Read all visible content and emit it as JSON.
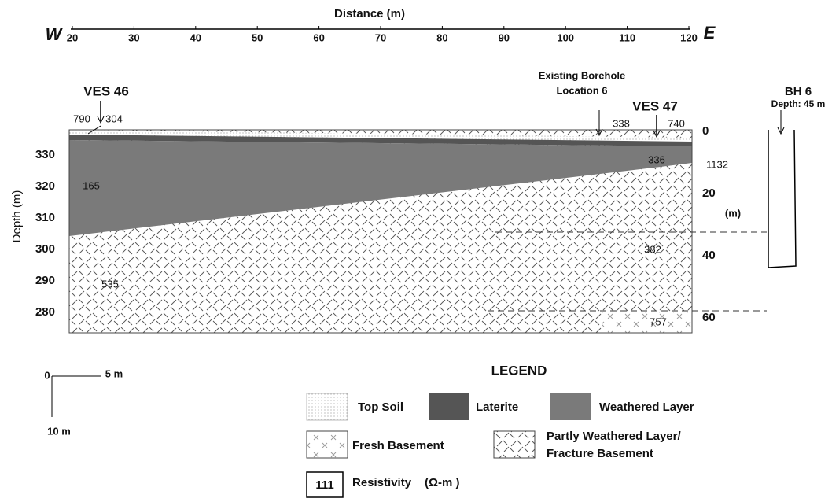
{
  "distance_axis": {
    "title": "Distance (m)",
    "west": "W",
    "east": "E",
    "ticks": [
      20,
      30,
      40,
      50,
      60,
      70,
      80,
      90,
      100,
      110,
      120
    ]
  },
  "elevation_axis": {
    "title": "Depth (m)",
    "ticks": [
      330,
      320,
      310,
      300,
      290,
      280
    ]
  },
  "depth_scale": {
    "unit": "(m)",
    "ticks": [
      0,
      20,
      40,
      60
    ]
  },
  "ves46": {
    "label": "VES 46",
    "resistivities": [
      790,
      304,
      165,
      535
    ]
  },
  "borehole_location": {
    "line1": "Existing Borehole",
    "line2": "Location 6"
  },
  "ves47": {
    "label": "VES 47",
    "resistivities": [
      338,
      740,
      336,
      1132,
      382,
      757
    ]
  },
  "bh6": {
    "label": "BH 6",
    "depth": "Depth: 45 m"
  },
  "scale_bar": {
    "origin": "0",
    "horizontal": "5 m",
    "vertical": "10 m"
  },
  "legend": {
    "title": "LEGEND",
    "top_soil": "Top Soil",
    "laterite": "Laterite",
    "weathered": "Weathered Layer",
    "fresh": "Fresh Basement",
    "partly_line1": "Partly Weathered Layer/",
    "partly_line2": "Fracture Basement",
    "resistivity_sample": "111",
    "resistivity": "Resistivity",
    "resistivity_unit": "(Ω-m )"
  }
}
